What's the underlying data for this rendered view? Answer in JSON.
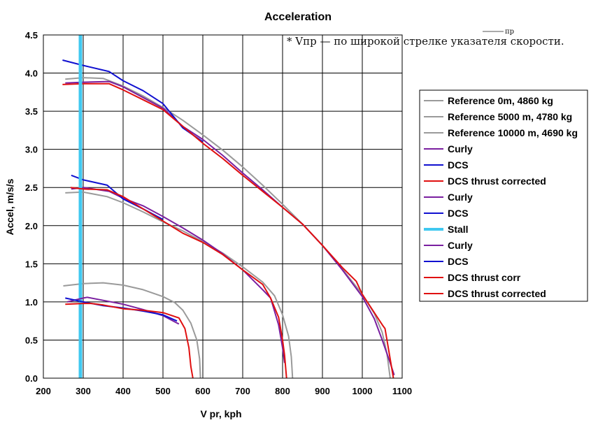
{
  "chart_data": {
    "type": "line",
    "title": "Acceleration",
    "xlabel": "V pr, kph",
    "ylabel": "Accel, m/s/s",
    "xlim": [
      200,
      1100
    ],
    "ylim": [
      0,
      4.5
    ],
    "xticks": [
      200,
      300,
      400,
      500,
      600,
      700,
      800,
      900,
      1000,
      1100
    ],
    "yticks": [
      0.0,
      0.5,
      1.0,
      1.5,
      2.0,
      2.5,
      3.0,
      3.5,
      4.0,
      4.5
    ],
    "grid": true,
    "legend_position": "right",
    "annotation": "* Vпр — по широкой стрелке указателя скорости.",
    "annotation_fragment": "пр",
    "series": [
      {
        "name": "Reference 0m, 4860 kg",
        "color": "#9a9a9a",
        "points": [
          [
            255,
            3.92
          ],
          [
            300,
            3.94
          ],
          [
            350,
            3.93
          ],
          [
            400,
            3.83
          ],
          [
            450,
            3.7
          ],
          [
            500,
            3.55
          ],
          [
            550,
            3.38
          ],
          [
            600,
            3.19
          ],
          [
            650,
            2.99
          ],
          [
            700,
            2.77
          ],
          [
            750,
            2.53
          ],
          [
            800,
            2.28
          ],
          [
            850,
            2.02
          ],
          [
            900,
            1.74
          ],
          [
            950,
            1.43
          ],
          [
            1000,
            1.1
          ],
          [
            1030,
            0.85
          ],
          [
            1050,
            0.6
          ],
          [
            1062,
            0.32
          ],
          [
            1070,
            0.0
          ]
        ]
      },
      {
        "name": "Reference 5000 m, 4780 kg",
        "color": "#9a9a9a",
        "points": [
          [
            255,
            2.43
          ],
          [
            300,
            2.44
          ],
          [
            360,
            2.38
          ],
          [
            400,
            2.3
          ],
          [
            450,
            2.18
          ],
          [
            500,
            2.05
          ],
          [
            550,
            1.93
          ],
          [
            600,
            1.79
          ],
          [
            650,
            1.64
          ],
          [
            700,
            1.46
          ],
          [
            750,
            1.26
          ],
          [
            780,
            1.08
          ],
          [
            800,
            0.83
          ],
          [
            815,
            0.55
          ],
          [
            822,
            0.28
          ],
          [
            825,
            0.0
          ]
        ]
      },
      {
        "name": "Reference 10000 m, 4690 kg",
        "color": "#9a9a9a",
        "points": [
          [
            250,
            1.21
          ],
          [
            300,
            1.24
          ],
          [
            350,
            1.25
          ],
          [
            400,
            1.22
          ],
          [
            450,
            1.16
          ],
          [
            500,
            1.07
          ],
          [
            530,
            0.99
          ],
          [
            550,
            0.89
          ],
          [
            570,
            0.72
          ],
          [
            585,
            0.5
          ],
          [
            592,
            0.25
          ],
          [
            594,
            0.0
          ]
        ]
      },
      {
        "name": "Curly",
        "color": "#7a1fa0",
        "points": [
          [
            255,
            3.87
          ],
          [
            300,
            3.88
          ],
          [
            365,
            3.89
          ],
          [
            400,
            3.82
          ],
          [
            450,
            3.68
          ],
          [
            500,
            3.54
          ],
          [
            550,
            3.3
          ],
          [
            600,
            3.13
          ],
          [
            650,
            2.92
          ],
          [
            700,
            2.69
          ],
          [
            750,
            2.47
          ],
          [
            800,
            2.24
          ],
          [
            850,
            2.02
          ],
          [
            900,
            1.74
          ],
          [
            950,
            1.42
          ],
          [
            1000,
            1.07
          ],
          [
            1030,
            0.78
          ],
          [
            1050,
            0.5
          ],
          [
            1070,
            0.2
          ],
          [
            1080,
            0.04
          ]
        ]
      },
      {
        "name": "DCS",
        "color": "#1010d0",
        "points": [
          [
            248,
            4.17
          ],
          [
            300,
            4.1
          ],
          [
            365,
            4.02
          ],
          [
            400,
            3.9
          ],
          [
            450,
            3.77
          ],
          [
            500,
            3.6
          ],
          [
            550,
            3.28
          ],
          [
            600,
            3.1
          ]
        ]
      },
      {
        "name": "DCS thrust corrected",
        "color": "#e01010",
        "points": [
          [
            248,
            3.85
          ],
          [
            300,
            3.86
          ],
          [
            365,
            3.86
          ],
          [
            400,
            3.78
          ],
          [
            450,
            3.65
          ],
          [
            500,
            3.52
          ],
          [
            550,
            3.3
          ],
          [
            600,
            3.08
          ],
          [
            650,
            2.88
          ],
          [
            700,
            2.66
          ],
          [
            750,
            2.45
          ],
          [
            800,
            2.24
          ],
          [
            850,
            2.02
          ],
          [
            900,
            1.74
          ],
          [
            950,
            1.45
          ],
          [
            985,
            1.27
          ],
          [
            1000,
            1.1
          ],
          [
            1050,
            0.7
          ],
          [
            1057,
            0.65
          ],
          [
            1070,
            0.25
          ],
          [
            1078,
            0.0
          ]
        ]
      },
      {
        "name": "Curly",
        "color": "#7a1fa0",
        "points": [
          [
            270,
            2.48
          ],
          [
            300,
            2.5
          ],
          [
            365,
            2.45
          ],
          [
            400,
            2.36
          ],
          [
            450,
            2.26
          ],
          [
            500,
            2.12
          ],
          [
            550,
            1.97
          ],
          [
            600,
            1.81
          ],
          [
            650,
            1.63
          ],
          [
            700,
            1.42
          ],
          [
            750,
            1.16
          ],
          [
            770,
            1.05
          ],
          [
            790,
            0.7
          ],
          [
            800,
            0.4
          ],
          [
            805,
            0.2
          ]
        ]
      },
      {
        "name": "DCS",
        "color": "#1010d0",
        "points": [
          [
            270,
            2.66
          ],
          [
            300,
            2.6
          ],
          [
            360,
            2.53
          ],
          [
            400,
            2.35
          ],
          [
            450,
            2.22
          ],
          [
            500,
            2.08
          ]
        ]
      },
      {
        "name": "Stall",
        "color": "#40c8f0",
        "points": [
          [
            293,
            0.0
          ],
          [
            293,
            4.5
          ]
        ]
      },
      {
        "name": "Curly",
        "color": "#7a1fa0",
        "points": [
          [
            260,
            1.0
          ],
          [
            300,
            1.05
          ],
          [
            310,
            1.06
          ],
          [
            350,
            1.02
          ],
          [
            400,
            0.97
          ],
          [
            450,
            0.9
          ],
          [
            500,
            0.82
          ],
          [
            540,
            0.71
          ]
        ]
      },
      {
        "name": "DCS",
        "color": "#1010d0",
        "points": [
          [
            255,
            1.05
          ],
          [
            300,
            1.0
          ],
          [
            350,
            0.95
          ],
          [
            400,
            0.92
          ],
          [
            450,
            0.88
          ],
          [
            500,
            0.83
          ],
          [
            535,
            0.75
          ]
        ]
      },
      {
        "name": "DCS thrust  corr",
        "color": "#e01010",
        "points": [
          [
            255,
            0.97
          ],
          [
            300,
            0.98
          ],
          [
            320,
            0.98
          ],
          [
            350,
            0.96
          ],
          [
            400,
            0.91
          ],
          [
            450,
            0.89
          ],
          [
            500,
            0.86
          ],
          [
            540,
            0.79
          ],
          [
            555,
            0.65
          ],
          [
            565,
            0.4
          ],
          [
            570,
            0.15
          ],
          [
            575,
            0.0
          ]
        ]
      },
      {
        "name": "DCS thrust corrected",
        "color": "#e01010",
        "points": [
          [
            268,
            2.5
          ],
          [
            300,
            2.48
          ],
          [
            360,
            2.47
          ],
          [
            400,
            2.38
          ],
          [
            450,
            2.22
          ],
          [
            500,
            2.06
          ],
          [
            550,
            1.9
          ],
          [
            600,
            1.78
          ],
          [
            650,
            1.62
          ],
          [
            700,
            1.42
          ],
          [
            750,
            1.23
          ],
          [
            770,
            1.05
          ],
          [
            790,
            0.8
          ],
          [
            800,
            0.5
          ],
          [
            805,
            0.3
          ],
          [
            810,
            0.0
          ]
        ]
      }
    ]
  }
}
